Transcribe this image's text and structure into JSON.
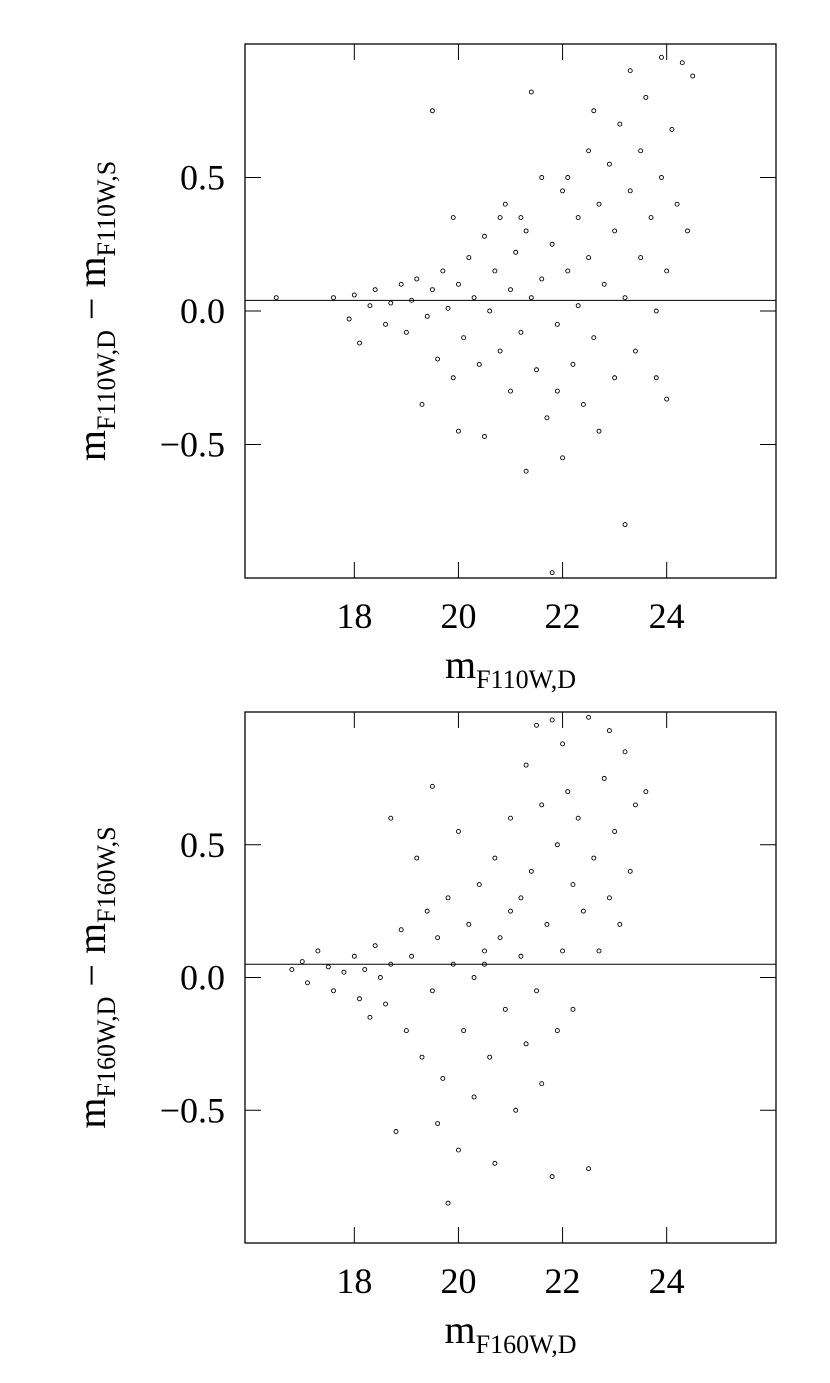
{
  "chart_data": [
    {
      "type": "scatter",
      "xlabel": {
        "base": "m",
        "sub": "F110W,D"
      },
      "ylabel": [
        {
          "base": "m",
          "sub": "F110W,D"
        },
        {
          "base": " − m",
          "sub": "F110W,S"
        }
      ],
      "xlim": [
        15.9,
        26.1
      ],
      "ylim": [
        -1.0,
        1.0
      ],
      "xticks": [
        18,
        20,
        22,
        24
      ],
      "yticks": [
        {
          "value": -0.5,
          "label": "−0.5"
        },
        {
          "value": 0,
          "label": "0.0"
        },
        0.5
      ],
      "hline": 0.04,
      "color": "#000000",
      "x": [
        16.5,
        17.6,
        17.9,
        18.0,
        18.1,
        18.3,
        18.4,
        18.6,
        18.7,
        18.9,
        19.0,
        19.1,
        19.2,
        19.3,
        19.4,
        19.5,
        19.5,
        19.6,
        19.7,
        19.8,
        19.9,
        19.9,
        20.0,
        20.0,
        20.1,
        20.2,
        20.3,
        20.4,
        20.5,
        20.5,
        20.6,
        20.7,
        20.8,
        20.9,
        21.0,
        21.0,
        21.1,
        21.2,
        21.3,
        21.3,
        21.4,
        21.4,
        21.5,
        21.6,
        21.6,
        21.7,
        21.8,
        21.8,
        21.9,
        22.0,
        22.0,
        22.1,
        22.2,
        22.3,
        22.3,
        22.4,
        22.5,
        22.5,
        22.6,
        22.7,
        22.7,
        22.8,
        22.9,
        23.0,
        23.0,
        23.1,
        23.2,
        23.2,
        23.3,
        23.3,
        23.4,
        23.5,
        23.5,
        23.6,
        23.7,
        23.8,
        23.9,
        23.9,
        24.0,
        24.1,
        24.2,
        24.3,
        24.4,
        24.5,
        23.8,
        22.1,
        21.2,
        20.8,
        21.9,
        22.6,
        24.0
      ],
      "values": [
        0.05,
        0.05,
        -0.03,
        0.06,
        -0.12,
        0.02,
        0.08,
        -0.05,
        0.03,
        0.1,
        -0.08,
        0.04,
        0.12,
        -0.35,
        -0.02,
        0.75,
        0.08,
        -0.18,
        0.15,
        0.01,
        0.35,
        -0.25,
        -0.45,
        0.1,
        -0.1,
        0.2,
        0.05,
        -0.2,
        -0.47,
        0.28,
        0.0,
        0.15,
        -0.15,
        0.4,
        0.08,
        -0.3,
        0.22,
        -0.08,
        -0.6,
        0.3,
        0.82,
        0.05,
        -0.22,
        0.5,
        0.12,
        -0.4,
        -0.98,
        0.25,
        -0.05,
        0.45,
        -0.55,
        0.15,
        -0.2,
        0.35,
        0.02,
        -0.35,
        0.6,
        0.2,
        -0.1,
        0.4,
        -0.45,
        0.1,
        0.55,
        -0.25,
        0.3,
        0.7,
        -0.8,
        0.05,
        0.9,
        0.45,
        -0.15,
        0.6,
        0.2,
        0.8,
        0.35,
        -0.25,
        0.95,
        0.5,
        0.15,
        0.68,
        0.4,
        0.93,
        0.3,
        0.88,
        0.0,
        0.5,
        0.35,
        0.35,
        -0.3,
        0.75,
        -0.33
      ]
    },
    {
      "type": "scatter",
      "xlabel": {
        "base": "m",
        "sub": "F160W,D"
      },
      "ylabel": [
        {
          "base": "m",
          "sub": "F160W,D"
        },
        {
          "base": " − m",
          "sub": "F160W,S"
        }
      ],
      "xlim": [
        15.9,
        26.1
      ],
      "ylim": [
        -1.0,
        1.0
      ],
      "xticks": [
        18,
        20,
        22,
        24
      ],
      "yticks": [
        {
          "value": -0.5,
          "label": "−0.5"
        },
        {
          "value": 0,
          "label": "0.0"
        },
        0.5
      ],
      "hline": 0.05,
      "color": "#000000",
      "x": [
        16.8,
        17.0,
        17.1,
        17.3,
        17.5,
        17.6,
        17.8,
        18.0,
        18.1,
        18.2,
        18.3,
        18.4,
        18.5,
        18.6,
        18.7,
        18.7,
        18.8,
        18.9,
        19.0,
        19.1,
        19.2,
        19.3,
        19.4,
        19.5,
        19.5,
        19.6,
        19.7,
        19.8,
        19.8,
        19.9,
        20.0,
        20.0,
        20.1,
        20.2,
        20.3,
        20.4,
        20.5,
        20.6,
        20.7,
        20.7,
        20.8,
        20.9,
        21.0,
        21.0,
        21.1,
        21.2,
        21.3,
        21.3,
        21.4,
        21.5,
        21.5,
        21.6,
        21.6,
        21.7,
        21.8,
        21.8,
        21.9,
        22.0,
        22.0,
        22.1,
        22.2,
        22.2,
        22.3,
        22.4,
        22.5,
        22.5,
        22.6,
        22.7,
        22.8,
        22.9,
        23.0,
        23.1,
        23.2,
        23.3,
        23.4,
        23.6,
        22.9,
        20.5,
        20.3,
        21.2,
        21.9,
        19.6
      ],
      "values": [
        0.03,
        0.06,
        -0.02,
        0.1,
        0.04,
        -0.05,
        0.02,
        0.08,
        -0.08,
        0.03,
        -0.15,
        0.12,
        0.0,
        -0.1,
        0.6,
        0.05,
        -0.58,
        0.18,
        -0.2,
        0.08,
        0.45,
        -0.3,
        0.25,
        0.72,
        -0.05,
        0.15,
        -0.38,
        0.3,
        -0.85,
        0.05,
        0.55,
        -0.65,
        -0.2,
        0.2,
        -0.45,
        0.35,
        0.05,
        -0.3,
        0.45,
        -0.7,
        0.15,
        -0.12,
        0.6,
        0.25,
        -0.5,
        0.08,
        0.8,
        -0.25,
        0.4,
        0.95,
        -0.05,
        0.65,
        -0.4,
        0.2,
        0.97,
        -0.75,
        0.5,
        0.1,
        0.88,
        0.7,
        0.35,
        -0.12,
        0.6,
        0.25,
        0.98,
        -0.72,
        0.45,
        0.1,
        0.75,
        0.3,
        0.55,
        0.2,
        0.85,
        0.4,
        0.65,
        0.7,
        0.93,
        0.1,
        0.0,
        0.3,
        -0.2,
        -0.55
      ]
    }
  ]
}
